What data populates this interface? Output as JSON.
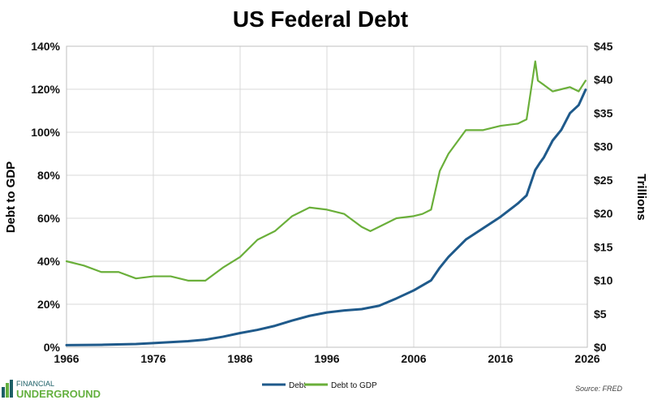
{
  "branding": {
    "line1": "FINANCIAL",
    "line2": "UNDERGROUND"
  },
  "source_text": "Source: FRED",
  "colors": {
    "debt": "#1f5a8b",
    "debt_to_gdp": "#6aaf3a",
    "grid": "#d9d9d9",
    "text": "#111111",
    "logo_dark": "#1c5f66",
    "logo_green": "#64b03f"
  },
  "chart_data": {
    "type": "line",
    "title": "US Federal Debt",
    "xlabel": "",
    "ylabel": "Debt to GDP",
    "y2label": "Trillions",
    "xlim": [
      1966,
      2026
    ],
    "ylim": [
      0,
      140
    ],
    "y2lim": [
      0,
      45
    ],
    "grid": true,
    "legend": "bottom-center",
    "x_ticks": [
      "1966",
      "1976",
      "1986",
      "1996",
      "2006",
      "2016",
      "2026"
    ],
    "y_ticks": [
      "0%",
      "20%",
      "40%",
      "60%",
      "80%",
      "100%",
      "120%",
      "140%"
    ],
    "y2_ticks": [
      "$0",
      "$5",
      "$10",
      "$15",
      "$20",
      "$25",
      "$30",
      "$35",
      "$40",
      "$45"
    ],
    "series": [
      {
        "name": "Debt",
        "axis": "right",
        "x": [
          1966,
          1970,
          1974,
          1976,
          1980,
          1982,
          1984,
          1986,
          1988,
          1990,
          1992,
          1994,
          1996,
          1998,
          2000,
          2002,
          2004,
          2006,
          2008,
          2009,
          2010,
          2012,
          2014,
          2016,
          2018,
          2019,
          2020,
          2020.5,
          2021,
          2022,
          2023,
          2024,
          2025,
          2025.8
        ],
        "values": [
          0.32,
          0.37,
          0.48,
          0.62,
          0.91,
          1.14,
          1.57,
          2.12,
          2.6,
          3.2,
          4.0,
          4.7,
          5.2,
          5.5,
          5.7,
          6.2,
          7.3,
          8.5,
          10.0,
          11.9,
          13.5,
          16.1,
          17.8,
          19.5,
          21.5,
          22.7,
          26.5,
          27.5,
          28.4,
          30.9,
          32.5,
          35.0,
          36.2,
          38.5
        ]
      },
      {
        "name": "Debt to GDP",
        "axis": "left",
        "x": [
          1966,
          1968,
          1970,
          1972,
          1974,
          1976,
          1978,
          1980,
          1982,
          1984,
          1986,
          1988,
          1990,
          1992,
          1994,
          1996,
          1998,
          2000,
          2001,
          2002,
          2004,
          2006,
          2007,
          2008,
          2009,
          2010,
          2012,
          2014,
          2016,
          2018,
          2019,
          2020,
          2020.3,
          2021,
          2022,
          2023,
          2024,
          2025,
          2025.8
        ],
        "values": [
          40,
          38,
          35,
          35,
          32,
          33,
          33,
          31,
          31,
          37,
          42,
          50,
          54,
          61,
          65,
          64,
          62,
          56,
          54,
          56,
          60,
          61,
          62,
          64,
          82,
          90,
          101,
          101,
          103,
          104,
          106,
          133,
          124,
          122,
          119,
          120,
          121,
          119,
          124
        ]
      }
    ]
  }
}
